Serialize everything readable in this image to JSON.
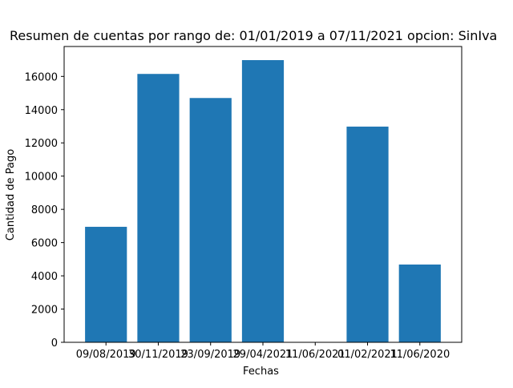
{
  "chart_data": {
    "type": "bar",
    "title": "Resumen de cuentas por rango de: 01/01/2019 a 07/11/2021 opcion: SinIva",
    "xlabel": "Fechas",
    "ylabel": "Cantidad de Pago",
    "categories": [
      "09/08/2019",
      "30/11/2019",
      "23/09/2019",
      "29/04/2021",
      "11/06/2021",
      "01/02/2021",
      "11/06/2020"
    ],
    "values": [
      6950,
      16150,
      14700,
      16980,
      0,
      12980,
      4680
    ],
    "ylim": [
      0,
      17800
    ],
    "yticks": [
      0,
      2000,
      4000,
      6000,
      8000,
      10000,
      12000,
      14000,
      16000
    ],
    "ytick_labels": [
      "0",
      "2000",
      "4000",
      "6000",
      "8000",
      "10000",
      "12000",
      "14000",
      "16000"
    ],
    "grid": false,
    "colors": {
      "bar": "#1f77b4",
      "axis": "#000000"
    }
  }
}
